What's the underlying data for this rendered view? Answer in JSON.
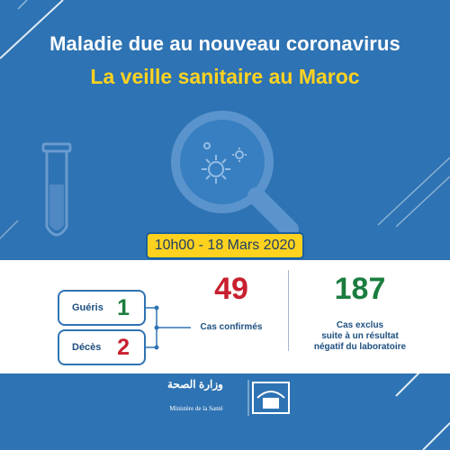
{
  "title": {
    "line1": "Maladie due au nouveau coronavirus",
    "line2": "La veille sanitaire au Maroc"
  },
  "date_badge": "10h00 - 18 Mars 2020",
  "recovered": {
    "label": "Guéris",
    "value": "1"
  },
  "deaths": {
    "label": "Décès",
    "value": "2"
  },
  "confirmed": {
    "value": "49",
    "label": "Cas confirmés"
  },
  "excluded": {
    "value": "187",
    "label_line1": "Cas exclus",
    "label_line2": "suite à un résultat",
    "label_line3": "négatif du laboratoire"
  },
  "footer": {
    "ministry_arabic": "وزارة الصحة",
    "ministry_french": "Ministère de la Santé"
  },
  "colors": {
    "background": "#2e73b3",
    "title_accent": "#ffd21f",
    "confirmed_red": "#c8202f",
    "excluded_green": "#1a7d3e"
  },
  "icons": [
    "test-tube-icon",
    "magnifier-icon",
    "virus-icon",
    "ministry-logo-icon"
  ]
}
